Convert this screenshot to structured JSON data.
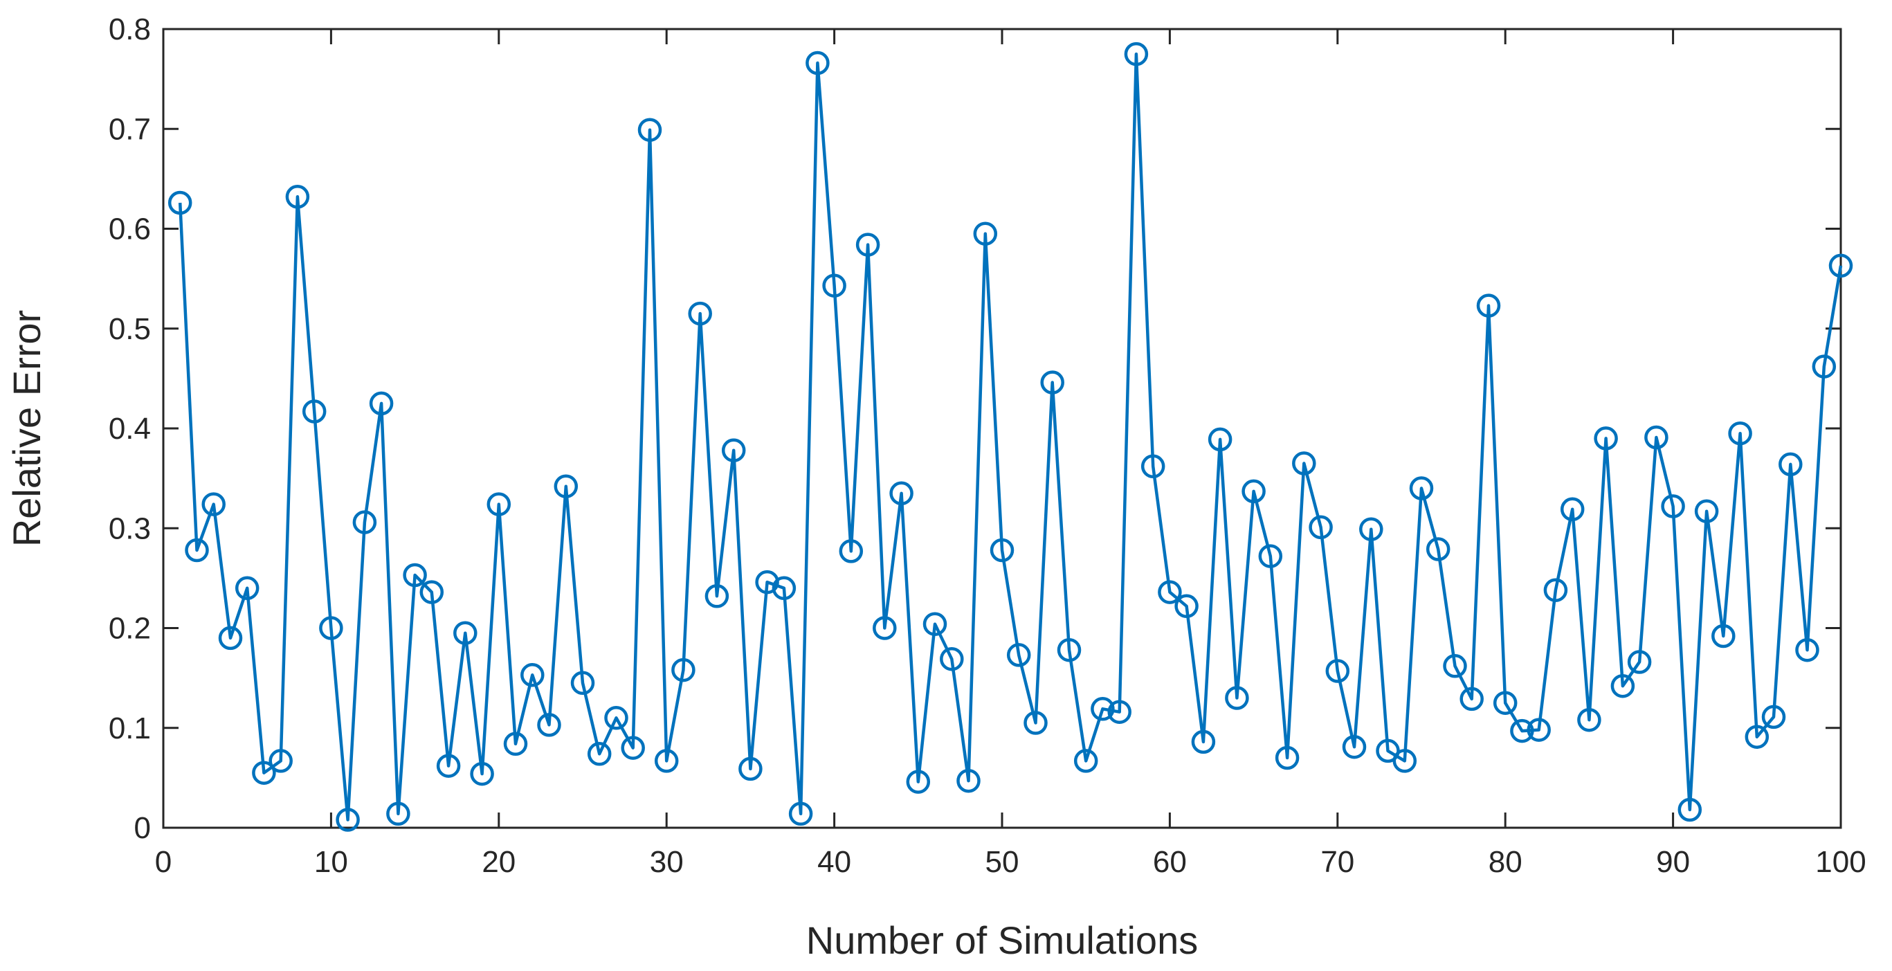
{
  "chart_data": {
    "type": "line",
    "title": "",
    "xlabel": "Number of Simulations",
    "ylabel": "Relative Error",
    "xlim": [
      0,
      100
    ],
    "ylim": [
      0,
      0.8
    ],
    "xticks": [
      0,
      10,
      20,
      30,
      40,
      50,
      60,
      70,
      80,
      90,
      100
    ],
    "yticks": [
      0,
      0.1,
      0.2,
      0.3,
      0.4,
      0.5,
      0.6,
      0.7,
      0.8
    ],
    "xtick_labels": [
      "0",
      "10",
      "20",
      "30",
      "40",
      "50",
      "60",
      "70",
      "80",
      "90",
      "100"
    ],
    "ytick_labels": [
      "0",
      "0.1",
      "0.2",
      "0.3",
      "0.4",
      "0.5",
      "0.6",
      "0.7",
      "0.8"
    ],
    "grid": false,
    "marker": "circle",
    "color": "#0072BD",
    "series": [
      {
        "name": "Relative Error",
        "x": [
          1,
          2,
          3,
          4,
          5,
          6,
          7,
          8,
          9,
          10,
          11,
          12,
          13,
          14,
          15,
          16,
          17,
          18,
          19,
          20,
          21,
          22,
          23,
          24,
          25,
          26,
          27,
          28,
          29,
          30,
          31,
          32,
          33,
          34,
          35,
          36,
          37,
          38,
          39,
          40,
          41,
          42,
          43,
          44,
          45,
          46,
          47,
          48,
          49,
          50,
          51,
          52,
          53,
          54,
          55,
          56,
          57,
          58,
          59,
          60,
          61,
          62,
          63,
          64,
          65,
          66,
          67,
          68,
          69,
          70,
          71,
          72,
          73,
          74,
          75,
          76,
          77,
          78,
          79,
          80,
          81,
          82,
          83,
          84,
          85,
          86,
          87,
          88,
          89,
          90,
          91,
          92,
          93,
          94,
          95,
          96,
          97,
          98,
          99,
          100
        ],
        "values": [
          0.626,
          0.278,
          0.324,
          0.19,
          0.24,
          0.055,
          0.067,
          0.632,
          0.417,
          0.2,
          0.008,
          0.306,
          0.425,
          0.014,
          0.253,
          0.236,
          0.062,
          0.195,
          0.054,
          0.324,
          0.084,
          0.153,
          0.103,
          0.342,
          0.145,
          0.074,
          0.11,
          0.08,
          0.699,
          0.067,
          0.158,
          0.515,
          0.232,
          0.378,
          0.059,
          0.246,
          0.24,
          0.014,
          0.766,
          0.543,
          0.277,
          0.584,
          0.2,
          0.335,
          0.046,
          0.204,
          0.169,
          0.047,
          0.595,
          0.278,
          0.173,
          0.105,
          0.446,
          0.178,
          0.067,
          0.119,
          0.116,
          0.775,
          0.362,
          0.236,
          0.222,
          0.086,
          0.389,
          0.13,
          0.337,
          0.272,
          0.07,
          0.365,
          0.301,
          0.157,
          0.081,
          0.299,
          0.077,
          0.067,
          0.34,
          0.279,
          0.162,
          0.129,
          0.523,
          0.125,
          0.097,
          0.098,
          0.238,
          0.319,
          0.108,
          0.39,
          0.142,
          0.166,
          0.391,
          0.322,
          0.018,
          0.317,
          0.192,
          0.395,
          0.091,
          0.111,
          0.364,
          0.178,
          0.462,
          0.563
        ]
      }
    ]
  }
}
